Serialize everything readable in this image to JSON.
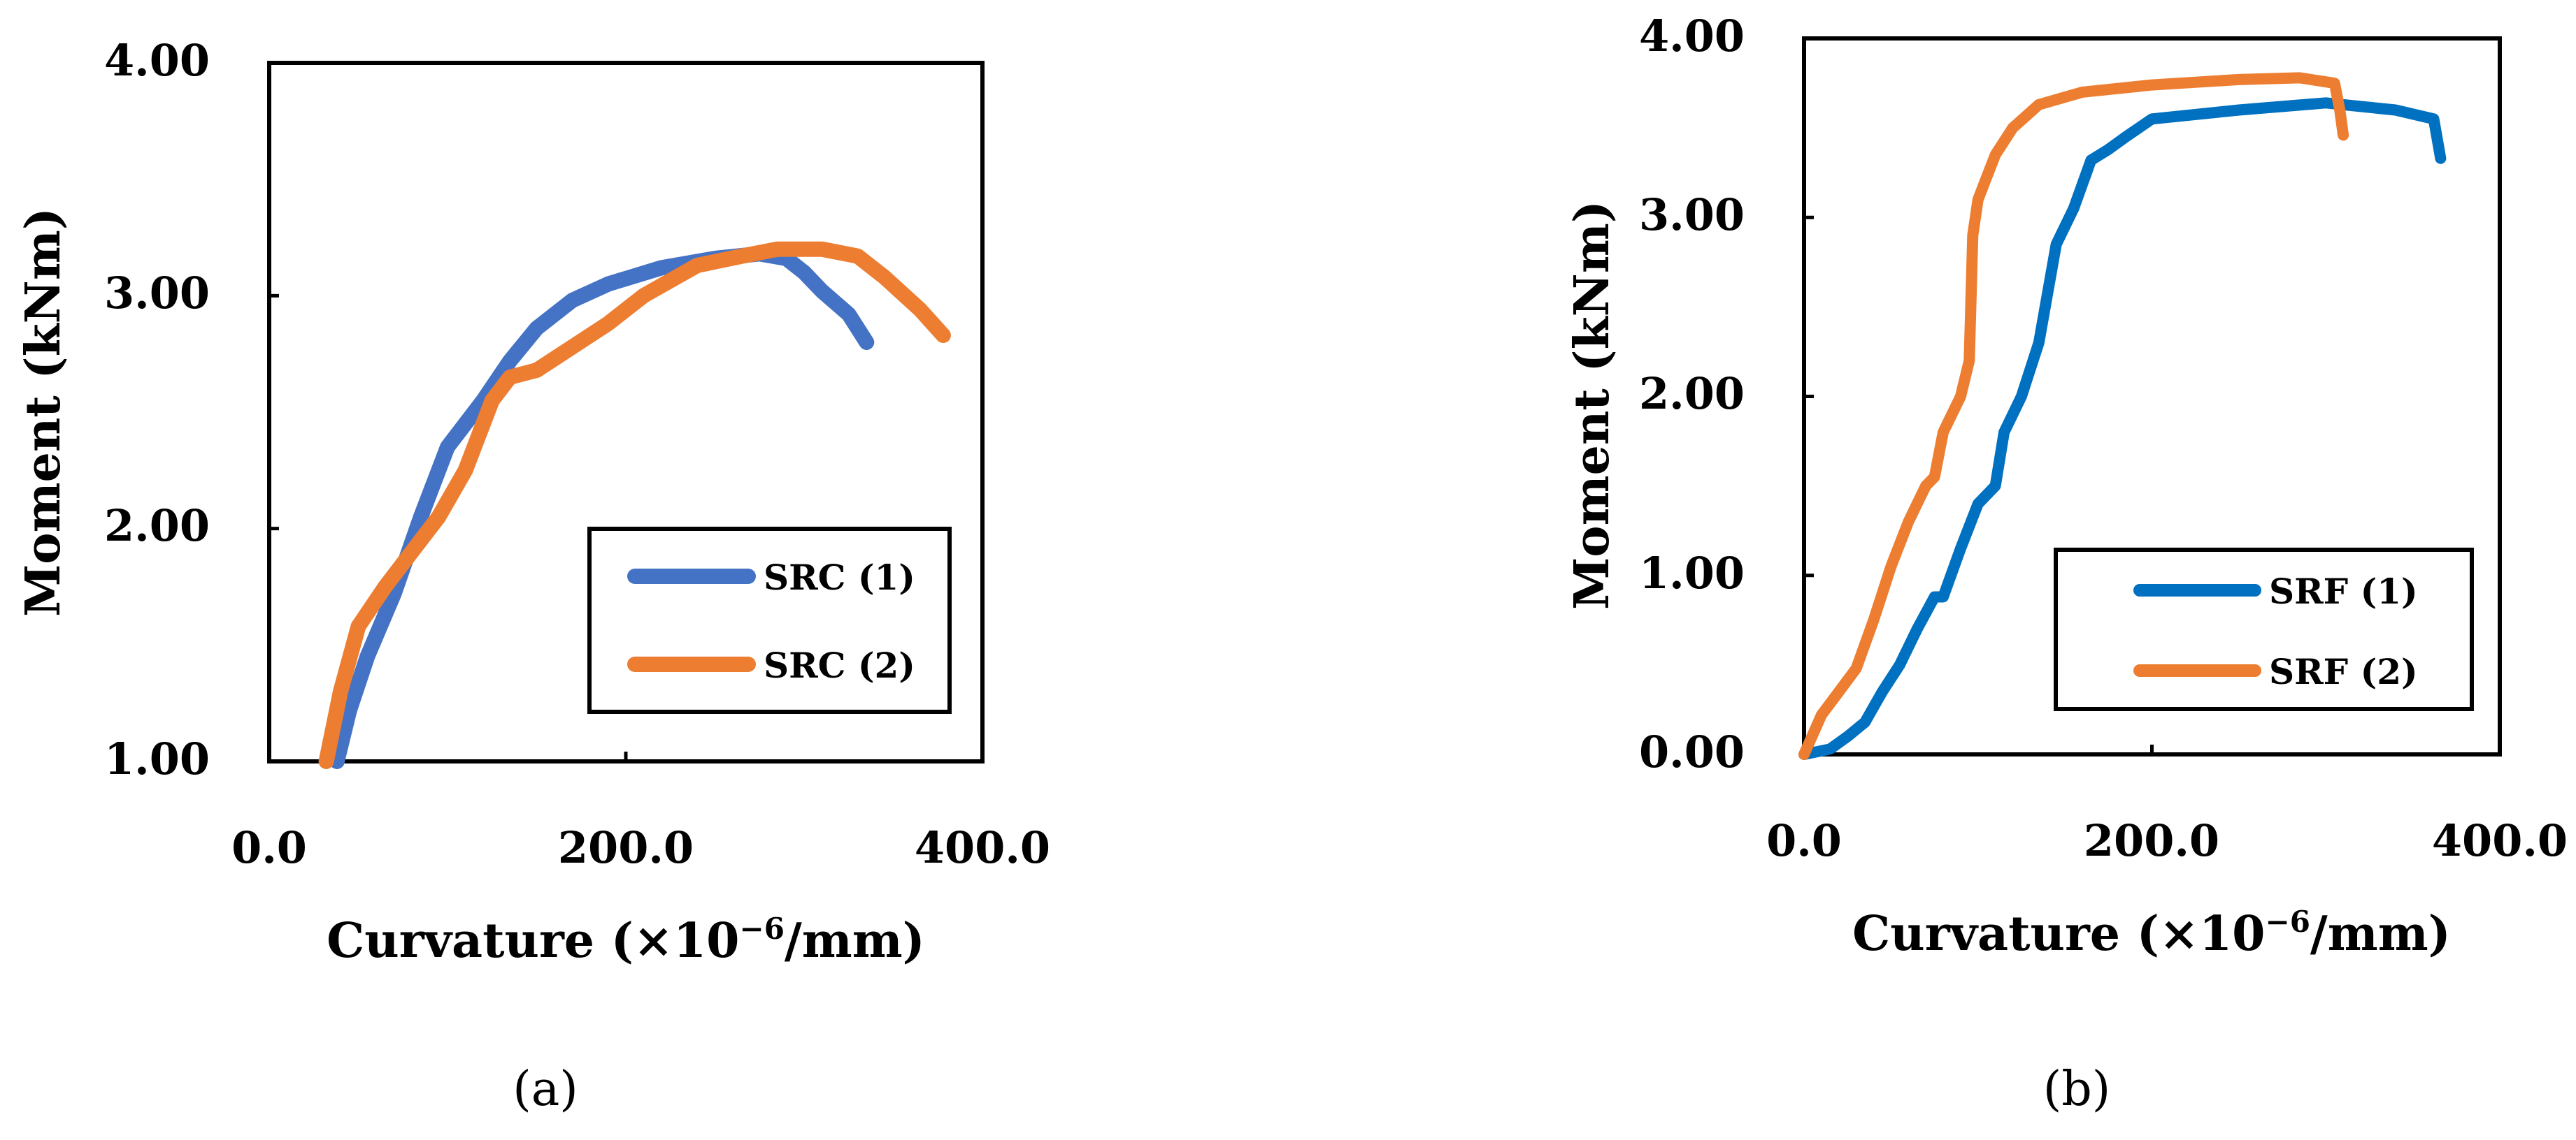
{
  "chart_data": [
    {
      "type": "line",
      "panel_label": "(a)",
      "title": "",
      "xlabel_main": "Curvature (×10",
      "xlabel_sup": "−6",
      "xlabel_tail": "/mm)",
      "ylabel": "Moment (kNm)",
      "xlim": [
        0,
        400
      ],
      "ylim": [
        1,
        4
      ],
      "x_ticks": [
        0,
        200,
        400
      ],
      "x_tick_labels": [
        "0.0",
        "200.0",
        "400.0"
      ],
      "y_ticks": [
        1,
        2,
        3,
        4
      ],
      "y_tick_labels": [
        "1.00",
        "2.00",
        "3.00",
        "4.00"
      ],
      "legend_position": "lower-right",
      "series": [
        {
          "name": "SRC (1)",
          "color": "#4472C4",
          "x": [
            38,
            45,
            55,
            70,
            85,
            100,
            120,
            135,
            150,
            170,
            190,
            220,
            250,
            275,
            290,
            300,
            310,
            325,
            335
          ],
          "y": [
            1.0,
            1.22,
            1.45,
            1.72,
            2.05,
            2.35,
            2.55,
            2.72,
            2.86,
            2.98,
            3.05,
            3.12,
            3.16,
            3.18,
            3.16,
            3.1,
            3.02,
            2.92,
            2.8
          ]
        },
        {
          "name": "SRC (2)",
          "color": "#ED7D31",
          "x": [
            32,
            40,
            50,
            65,
            80,
            95,
            110,
            125,
            135,
            150,
            170,
            190,
            210,
            240,
            265,
            285,
            310,
            330,
            345,
            365,
            378
          ],
          "y": [
            1.0,
            1.3,
            1.58,
            1.75,
            1.9,
            2.05,
            2.25,
            2.55,
            2.65,
            2.68,
            2.78,
            2.88,
            3.0,
            3.13,
            3.17,
            3.2,
            3.2,
            3.17,
            3.08,
            2.94,
            2.83
          ]
        }
      ]
    },
    {
      "type": "line",
      "panel_label": "(b)",
      "title": "",
      "xlabel_main": "Curvature (×10",
      "xlabel_sup": "−6",
      "xlabel_tail": "/mm)",
      "ylabel": "Moment  (kNm)",
      "xlim": [
        0,
        400
      ],
      "ylim": [
        0,
        4
      ],
      "x_ticks": [
        0,
        200,
        400
      ],
      "x_tick_labels": [
        "0.0",
        "200.0",
        "400.0"
      ],
      "y_ticks": [
        0,
        1,
        2,
        3,
        4
      ],
      "y_tick_labels": [
        "0.00",
        "1.00",
        "2.00",
        "3.00",
        "4.00"
      ],
      "legend_position": "lower-right",
      "series": [
        {
          "name": "SRF (1)",
          "color": "#0070C0",
          "x": [
            0,
            15,
            25,
            35,
            45,
            55,
            65,
            75,
            80,
            90,
            100,
            110,
            115,
            125,
            135,
            145,
            155,
            165,
            175,
            185,
            200,
            250,
            300,
            340,
            362,
            366
          ],
          "y": [
            0,
            0.03,
            0.1,
            0.18,
            0.35,
            0.5,
            0.7,
            0.88,
            0.88,
            1.15,
            1.4,
            1.5,
            1.8,
            2.0,
            2.3,
            2.85,
            3.05,
            3.32,
            3.38,
            3.45,
            3.55,
            3.6,
            3.64,
            3.6,
            3.55,
            3.33
          ]
        },
        {
          "name": "SRF (2)",
          "color": "#ED7D31",
          "x": [
            0,
            10,
            20,
            30,
            40,
            50,
            60,
            70,
            75,
            80,
            90,
            95,
            97,
            100,
            110,
            120,
            135,
            160,
            200,
            250,
            285,
            305,
            308,
            310
          ],
          "y": [
            0,
            0.22,
            0.35,
            0.48,
            0.75,
            1.05,
            1.3,
            1.5,
            1.55,
            1.8,
            2.0,
            2.2,
            2.9,
            3.1,
            3.35,
            3.5,
            3.63,
            3.7,
            3.74,
            3.77,
            3.78,
            3.75,
            3.6,
            3.46
          ]
        }
      ]
    }
  ]
}
